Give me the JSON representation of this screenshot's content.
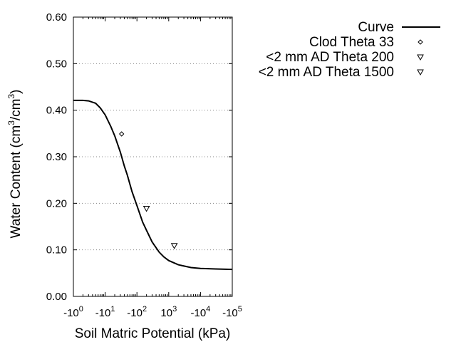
{
  "chart_data": {
    "type": "line",
    "xlabel": "Soil Matric Potential (kPa)",
    "ylabel": "Water Content (cm3/cm3)",
    "ylabel_parts": {
      "base": "Water Content (cm",
      "sup1": "3",
      "mid": "/cm",
      "sup2": "3",
      "end": ")"
    },
    "xscale": "log",
    "xlim": [
      1,
      100000
    ],
    "ylim": [
      0,
      0.6
    ],
    "grid": "horizontal dotted",
    "legend_position": "top-right",
    "x_ticks": [
      {
        "value": 1,
        "base": "-10",
        "exp": "0"
      },
      {
        "value": 10,
        "base": "-10",
        "exp": "1"
      },
      {
        "value": 100,
        "base": "-10",
        "exp": "2"
      },
      {
        "value": 1000,
        "base": "10",
        "exp": "3"
      },
      {
        "value": 10000,
        "base": "-10",
        "exp": "4"
      },
      {
        "value": 100000,
        "base": "-10",
        "exp": "5"
      }
    ],
    "y_ticks": [
      {
        "value": 0,
        "label": "0.00"
      },
      {
        "value": 0.1,
        "label": "0.10"
      },
      {
        "value": 0.2,
        "label": "0.20"
      },
      {
        "value": 0.3,
        "label": "0.30"
      },
      {
        "value": 0.4,
        "label": "0.40"
      },
      {
        "value": 0.5,
        "label": "0.50"
      },
      {
        "value": 0.6,
        "label": "0.60"
      }
    ],
    "series": [
      {
        "name": "Curve",
        "kind": "line",
        "color": "#000000",
        "points": [
          [
            1,
            0.421
          ],
          [
            2,
            0.421
          ],
          [
            3,
            0.42
          ],
          [
            5,
            0.415
          ],
          [
            7,
            0.405
          ],
          [
            10,
            0.39
          ],
          [
            15,
            0.365
          ],
          [
            20,
            0.345
          ],
          [
            30,
            0.31
          ],
          [
            40,
            0.28
          ],
          [
            50,
            0.26
          ],
          [
            70,
            0.225
          ],
          [
            100,
            0.195
          ],
          [
            150,
            0.16
          ],
          [
            200,
            0.142
          ],
          [
            300,
            0.117
          ],
          [
            500,
            0.095
          ],
          [
            700,
            0.085
          ],
          [
            1000,
            0.077
          ],
          [
            2000,
            0.068
          ],
          [
            5000,
            0.062
          ],
          [
            10000,
            0.06
          ],
          [
            30000,
            0.059
          ],
          [
            100000,
            0.058
          ]
        ]
      },
      {
        "name": "Clod Theta 33",
        "kind": "scatter",
        "marker": "diamond",
        "points": [
          [
            33,
            0.349
          ]
        ]
      },
      {
        "name": "<2 mm AD Theta 200",
        "kind": "scatter",
        "marker": "triangle-down",
        "points": [
          [
            200,
            0.189
          ]
        ]
      },
      {
        "name": "<2 mm AD Theta 1500",
        "kind": "scatter",
        "marker": "triangle-down",
        "points": [
          [
            1500,
            0.109
          ]
        ]
      }
    ]
  }
}
